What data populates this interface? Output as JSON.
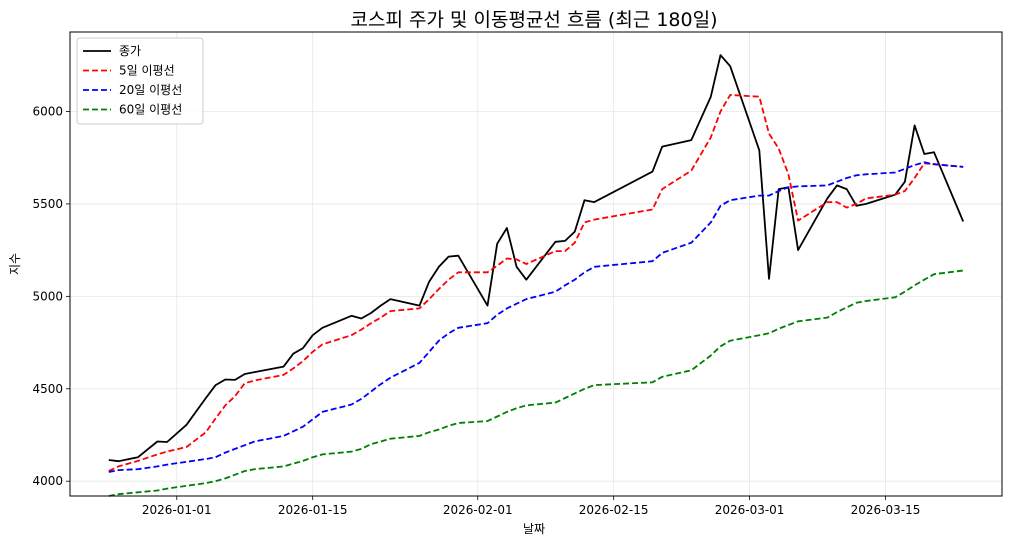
{
  "chart_data": {
    "type": "line",
    "title": "코스피 주가 및 이동평균선 흐름 (최근 180일)",
    "xlabel": "날짜",
    "ylabel": "지수",
    "xlim": [
      "2025-12-21",
      "2026-03-27"
    ],
    "ylim": [
      3920,
      6430
    ],
    "grid": true,
    "legend_position": "top-left",
    "x_ticks": [
      "2026-01-01",
      "2026-01-15",
      "2026-02-01",
      "2026-02-15",
      "2026-03-01",
      "2026-03-15"
    ],
    "y_ticks": [
      4000,
      4500,
      5000,
      5500,
      6000
    ],
    "dates": [
      "2025-12-25",
      "2025-12-26",
      "2025-12-28",
      "2025-12-30",
      "2025-12-31",
      "2026-01-02",
      "2026-01-04",
      "2026-01-05",
      "2026-01-06",
      "2026-01-07",
      "2026-01-08",
      "2026-01-09",
      "2026-01-12",
      "2026-01-13",
      "2026-01-14",
      "2026-01-15",
      "2026-01-16",
      "2026-01-19",
      "2026-01-20",
      "2026-01-21",
      "2026-01-22",
      "2026-01-23",
      "2026-01-26",
      "2026-01-27",
      "2026-01-28",
      "2026-01-29",
      "2026-01-30",
      "2026-02-02",
      "2026-02-03",
      "2026-02-04",
      "2026-02-05",
      "2026-02-06",
      "2026-02-09",
      "2026-02-10",
      "2026-02-11",
      "2026-02-12",
      "2026-02-13",
      "2026-02-19",
      "2026-02-20",
      "2026-02-23",
      "2026-02-25",
      "2026-02-26",
      "2026-02-27",
      "2026-03-02",
      "2026-03-03",
      "2026-03-04",
      "2026-03-05",
      "2026-03-06",
      "2026-03-09",
      "2026-03-10",
      "2026-03-11",
      "2026-03-12",
      "2026-03-13",
      "2026-03-16",
      "2026-03-17",
      "2026-03-18",
      "2026-03-19",
      "2026-03-20",
      "2026-03-23"
    ],
    "series": [
      {
        "name": "종가",
        "color": "#000000",
        "dash": "solid",
        "values": [
          4115,
          4108,
          4130,
          4215,
          4212,
          4305,
          4450,
          4520,
          4550,
          4548,
          4580,
          4590,
          4620,
          4690,
          4720,
          4790,
          4830,
          4895,
          4880,
          4910,
          4950,
          4985,
          4950,
          5080,
          5160,
          5215,
          5220,
          4950,
          5285,
          5370,
          5160,
          5090,
          5295,
          5300,
          5350,
          5520,
          5510,
          5675,
          5810,
          5845,
          6080,
          6305,
          6245,
          5790,
          5095,
          5580,
          5590,
          5250,
          5530,
          5600,
          5580,
          5490,
          5500,
          5550,
          5620,
          5925,
          5770,
          5780,
          5405
        ]
      },
      {
        "name": "5일 이평선",
        "color": "#ff0000",
        "dash": "dashed",
        "values": [
          4055,
          4080,
          4110,
          4145,
          4160,
          4185,
          4265,
          4340,
          4410,
          4460,
          4530,
          4545,
          4575,
          4610,
          4650,
          4700,
          4740,
          4790,
          4820,
          4855,
          4885,
          4920,
          4935,
          4985,
          5040,
          5090,
          5130,
          5130,
          5165,
          5205,
          5200,
          5175,
          5245,
          5245,
          5290,
          5400,
          5415,
          5470,
          5580,
          5680,
          5860,
          6000,
          6090,
          6080,
          5880,
          5800,
          5660,
          5410,
          5510,
          5510,
          5480,
          5500,
          5530,
          5550,
          5570,
          5640,
          5720,
          5715,
          5700
        ]
      },
      {
        "name": "20일 이평선",
        "color": "#0000ff",
        "dash": "dashed",
        "values": [
          4050,
          4060,
          4065,
          4080,
          4090,
          4105,
          4120,
          4130,
          4155,
          4175,
          4195,
          4215,
          4245,
          4270,
          4295,
          4335,
          4375,
          4415,
          4445,
          4485,
          4525,
          4560,
          4640,
          4700,
          4760,
          4800,
          4830,
          4855,
          4900,
          4935,
          4960,
          4985,
          5025,
          5060,
          5090,
          5130,
          5160,
          5190,
          5235,
          5290,
          5400,
          5490,
          5520,
          5545,
          5545,
          5570,
          5590,
          5595,
          5600,
          5620,
          5640,
          5655,
          5660,
          5670,
          5690,
          5710,
          5725,
          5715,
          5700
        ]
      },
      {
        "name": "60일 이평선",
        "color": "#008000",
        "dash": "dashed",
        "values": [
          3920,
          3930,
          3940,
          3950,
          3960,
          3975,
          3990,
          4000,
          4015,
          4035,
          4055,
          4065,
          4080,
          4095,
          4110,
          4130,
          4145,
          4160,
          4175,
          4200,
          4215,
          4230,
          4245,
          4265,
          4280,
          4300,
          4315,
          4325,
          4350,
          4375,
          4395,
          4410,
          4425,
          4450,
          4475,
          4500,
          4520,
          4535,
          4565,
          4600,
          4680,
          4730,
          4760,
          4790,
          4800,
          4825,
          4845,
          4865,
          4885,
          4915,
          4940,
          4965,
          4975,
          4995,
          5025,
          5060,
          5090,
          5120,
          5140
        ]
      }
    ]
  }
}
